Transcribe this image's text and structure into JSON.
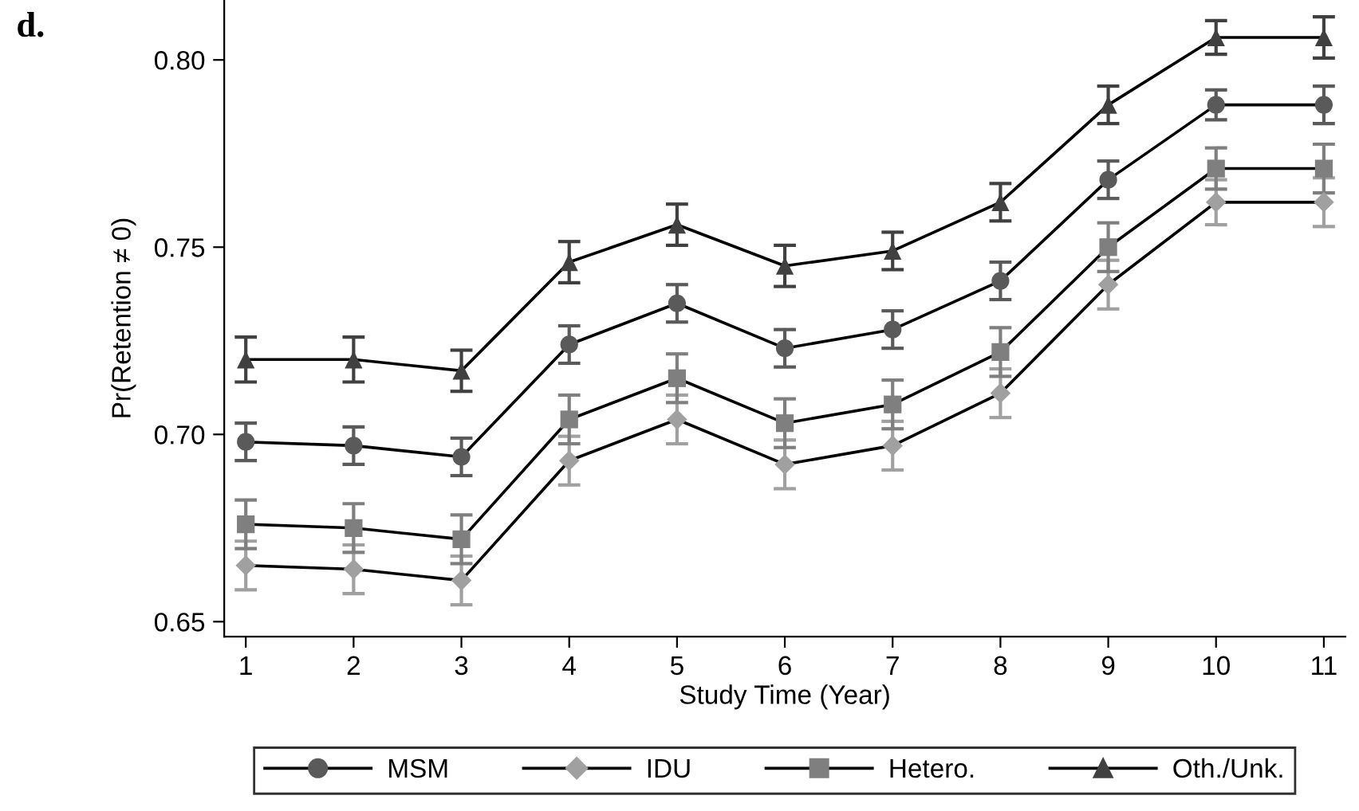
{
  "chart_data": {
    "type": "line",
    "xlabel": "Study Time (Year)",
    "ylabel": "Pr(Retention ≠ 0)",
    "annotations": [
      "d."
    ],
    "x": [
      1,
      2,
      3,
      4,
      5,
      6,
      7,
      8,
      9,
      10,
      11
    ],
    "xlim": [
      0.8,
      11.2
    ],
    "xticks": [
      1,
      2,
      3,
      4,
      5,
      6,
      7,
      8,
      9,
      10,
      11
    ],
    "ylim": [
      0.646,
      0.816
    ],
    "yticks": [
      {
        "value": 0.65,
        "label": "0.65"
      },
      {
        "value": 0.7,
        "label": "0.70"
      },
      {
        "value": 0.75,
        "label": "0.75"
      },
      {
        "value": 0.8,
        "label": "0.80"
      }
    ],
    "grid": false,
    "legend": "bottom",
    "line_style": "solid",
    "series": [
      {
        "name": "MSM",
        "color": "#5a5a5a",
        "marker": "circle",
        "values": [
          0.698,
          0.697,
          0.694,
          0.724,
          0.735,
          0.723,
          0.728,
          0.741,
          0.768,
          0.788,
          0.788
        ],
        "errors": [
          0.005,
          0.005,
          0.005,
          0.005,
          0.005,
          0.005,
          0.005,
          0.005,
          0.005,
          0.004,
          0.005
        ]
      },
      {
        "name": "IDU",
        "color": "#a0a0a0",
        "marker": "diamond",
        "values": [
          0.665,
          0.664,
          0.661,
          0.693,
          0.704,
          0.692,
          0.697,
          0.711,
          0.74,
          0.762,
          0.762
        ],
        "errors": [
          0.0065,
          0.0065,
          0.0065,
          0.0065,
          0.0065,
          0.0065,
          0.0065,
          0.0065,
          0.0065,
          0.006,
          0.0065
        ]
      },
      {
        "name": "Hetero.",
        "color": "#7f7f7f",
        "marker": "square",
        "values": [
          0.676,
          0.675,
          0.672,
          0.704,
          0.715,
          0.703,
          0.708,
          0.722,
          0.75,
          0.771,
          0.771
        ],
        "errors": [
          0.0065,
          0.0065,
          0.0065,
          0.0065,
          0.0065,
          0.0065,
          0.0065,
          0.0065,
          0.0065,
          0.0055,
          0.0065
        ]
      },
      {
        "name": "Oth./Unk.",
        "color": "#404040",
        "marker": "triangle",
        "values": [
          0.72,
          0.72,
          0.717,
          0.746,
          0.756,
          0.745,
          0.749,
          0.762,
          0.788,
          0.806,
          0.806
        ],
        "errors": [
          0.006,
          0.006,
          0.0055,
          0.0055,
          0.0055,
          0.0055,
          0.005,
          0.005,
          0.005,
          0.0045,
          0.0055
        ]
      }
    ]
  }
}
